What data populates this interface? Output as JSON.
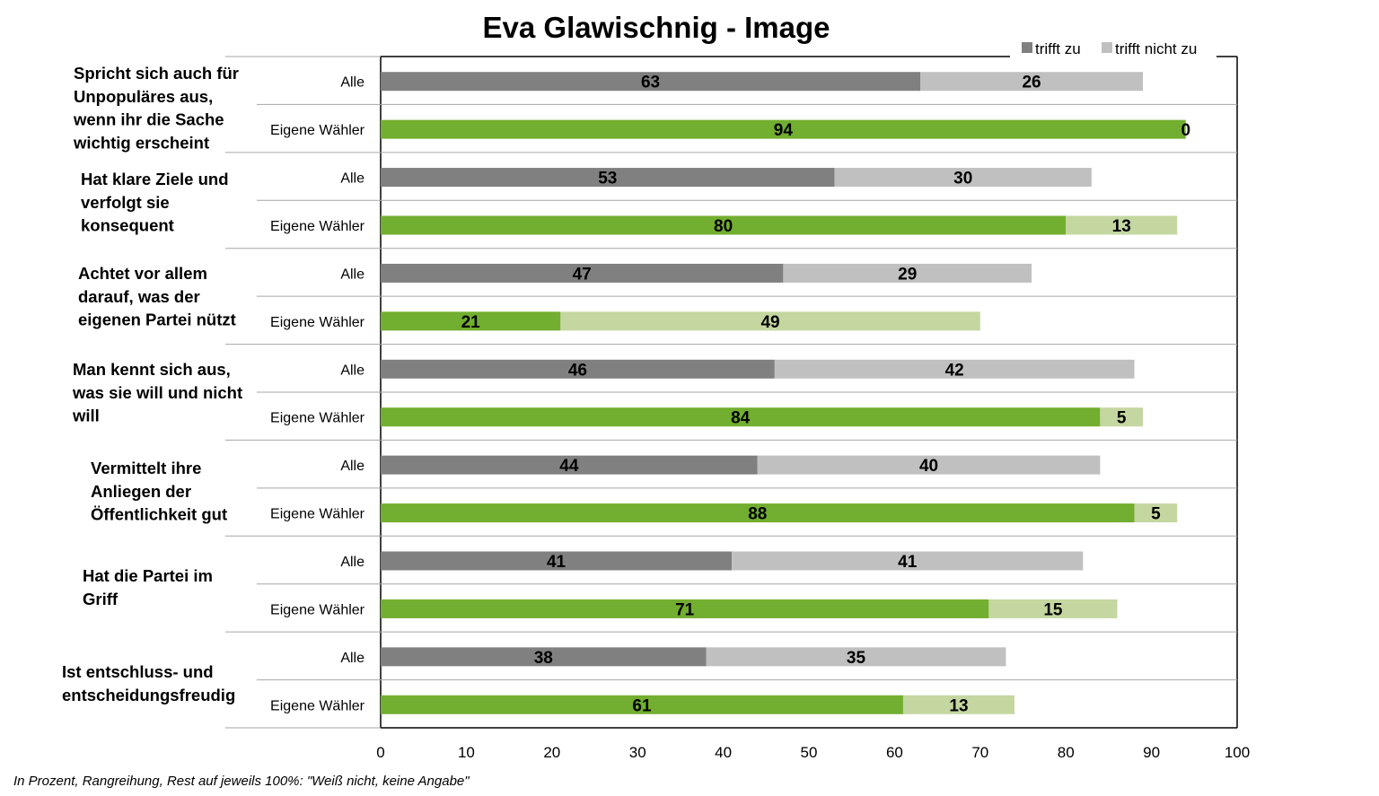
{
  "chart_data": {
    "type": "bar",
    "orientation": "horizontal",
    "stacked": true,
    "title": "Eva Glawischnig - Image",
    "xlim": [
      0,
      100
    ],
    "x_ticks": [
      "0",
      "10",
      "20",
      "30",
      "40",
      "50",
      "60",
      "70",
      "80",
      "90",
      "100"
    ],
    "legend": {
      "placement": "top-right",
      "entries": [
        {
          "label": "trifft zu",
          "color": "#808080"
        },
        {
          "label": "trifft nicht zu",
          "color": "#c0c0c0"
        }
      ]
    },
    "colors": {
      "alle_zu": "#808080",
      "alle_nicht": "#c0c0c0",
      "eigene_zu": "#72ae2f",
      "eigene_nicht": "#c4d7a0",
      "grid": "#a6a6a6",
      "axis": "#000000"
    },
    "groups": [
      {
        "label": [
          "Spricht sich auch für",
          "Unpopuläres aus,",
          "wenn ihr die Sache",
          "wichtig erscheint"
        ],
        "rows": [
          {
            "label": "Alle",
            "trifft_zu": 63,
            "trifft_nicht_zu": 26
          },
          {
            "label": "Eigene Wähler",
            "trifft_zu": 94,
            "trifft_nicht_zu": 0
          }
        ]
      },
      {
        "label": [
          "Hat klare Ziele und",
          "verfolgt sie",
          "konsequent"
        ],
        "rows": [
          {
            "label": "Alle",
            "trifft_zu": 53,
            "trifft_nicht_zu": 30
          },
          {
            "label": "Eigene Wähler",
            "trifft_zu": 80,
            "trifft_nicht_zu": 13
          }
        ]
      },
      {
        "label": [
          "Achtet vor allem",
          "darauf, was der",
          "eigenen  Partei nützt"
        ],
        "rows": [
          {
            "label": "Alle",
            "trifft_zu": 47,
            "trifft_nicht_zu": 29
          },
          {
            "label": "Eigene Wähler",
            "trifft_zu": 21,
            "trifft_nicht_zu": 49
          }
        ]
      },
      {
        "label": [
          "Man kennt sich aus,",
          "was sie will und nicht",
          "will"
        ],
        "rows": [
          {
            "label": "Alle",
            "trifft_zu": 46,
            "trifft_nicht_zu": 42
          },
          {
            "label": "Eigene Wähler",
            "trifft_zu": 84,
            "trifft_nicht_zu": 5
          }
        ]
      },
      {
        "label": [
          "Vermittelt ihre",
          "Anliegen der",
          "Öffentlichkeit gut"
        ],
        "rows": [
          {
            "label": "Alle",
            "trifft_zu": 44,
            "trifft_nicht_zu": 40
          },
          {
            "label": "Eigene Wähler",
            "trifft_zu": 88,
            "trifft_nicht_zu": 5
          }
        ]
      },
      {
        "label": [
          "Hat die Partei im",
          "Griff"
        ],
        "rows": [
          {
            "label": "Alle",
            "trifft_zu": 41,
            "trifft_nicht_zu": 41
          },
          {
            "label": "Eigene Wähler",
            "trifft_zu": 71,
            "trifft_nicht_zu": 15
          }
        ]
      },
      {
        "label": [
          "Ist entschluss- und",
          "entscheidungsfreudig"
        ],
        "rows": [
          {
            "label": "Alle",
            "trifft_zu": 38,
            "trifft_nicht_zu": 35
          },
          {
            "label": "Eigene Wähler",
            "trifft_zu": 61,
            "trifft_nicht_zu": 13
          }
        ]
      }
    ],
    "footnote": "In Prozent, Rangreihung, Rest auf jeweils 100%: \"Weiß nicht, keine Angabe\""
  }
}
